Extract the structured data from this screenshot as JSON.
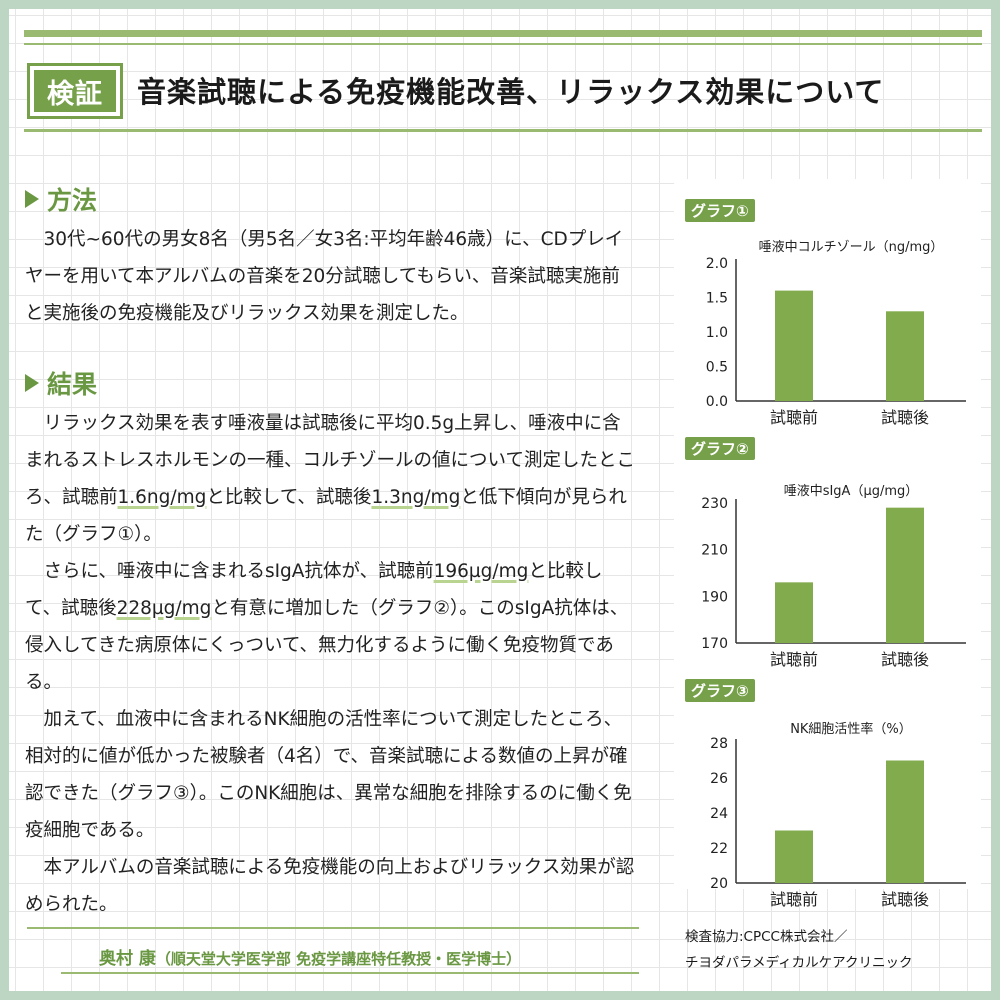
{
  "header": {
    "badge": "検証",
    "title": "音楽試聴による免疫機能改善、リラックス効果について"
  },
  "method": {
    "heading": "方法",
    "text": "30代~60代の男女8名（男5名／女3名:平均年齢46歳）に、CDプレイヤーを用いて本アルバムの音楽を20分試聴してもらい、音楽試聴実施前と実施後の免疫機能及びリラックス効果を測定した。"
  },
  "results": {
    "heading": "結果",
    "p1": {
      "a": "リラックス効果を表す唾液量は試聴後に平均0.5g上昇し、唾液中に含まれるストレスホルモンの一種、コルチゾールの値について測定したところ、試聴前",
      "u1": "1.6ng/mg",
      "b": "と比較して、試聴後",
      "u2": "1.3ng/mg",
      "c": "と低下傾向が見られた（グラフ①）。"
    },
    "p2": {
      "a": "さらに、唾液中に含まれるsIgA抗体が、試聴前",
      "u1": "196µg/mg",
      "b": "と比較して、試聴後",
      "u2": "228µg/mg",
      "c": "と有意に増加した（グラフ②）。このsIgA抗体は、侵入してきた病原体にくっついて、無力化するように働く免疫物質である。"
    },
    "p3": "加えて、血液中に含まれるNK細胞の活性率について測定したところ、相対的に値が低かった被験者（4名）で、音楽試聴による数値の上昇が確認できた（グラフ③）。このNK細胞は、異常な細胞を排除するのに働く免疫細胞である。",
    "p4": "本アルバムの音楽試聴による免疫機能の向上およびリラックス効果が認められた。"
  },
  "author": {
    "name": "奥村 康",
    "affiliation": "（順天堂大学医学部 免疫学講座特任教授・医学博士）"
  },
  "credit": {
    "line1": "検査協力:CPCC株式会社／",
    "line2": "チヨダパラメディカルケアクリニック"
  },
  "colors": {
    "accent": "#76a049",
    "bar": "#82ab4e",
    "heading": "#6a9842"
  },
  "chart_data": [
    {
      "type": "bar",
      "tag": "グラフ①",
      "title": "唾液中コルチゾール（ng/mg）",
      "categories": [
        "試聴前",
        "試聴後"
      ],
      "values": [
        1.6,
        1.3
      ],
      "ylim": [
        0,
        2.0
      ],
      "ticks": [
        "2.0",
        "1.5",
        "1.0",
        "0.5",
        "0.0"
      ],
      "grid": false
    },
    {
      "type": "bar",
      "tag": "グラフ②",
      "title": "唾液中sIgA（µg/mg）",
      "categories": [
        "試聴前",
        "試聴後"
      ],
      "values": [
        196,
        228
      ],
      "ylim": [
        170,
        230
      ],
      "ticks": [
        "230",
        "210",
        "190",
        "170"
      ],
      "grid": false
    },
    {
      "type": "bar",
      "tag": "グラフ③",
      "title": "NK細胞活性率（%）",
      "categories": [
        "試聴前",
        "試聴後"
      ],
      "values": [
        23,
        27
      ],
      "ylim": [
        20,
        28
      ],
      "ticks": [
        "28",
        "26",
        "24",
        "22",
        "20"
      ],
      "grid": false
    }
  ]
}
